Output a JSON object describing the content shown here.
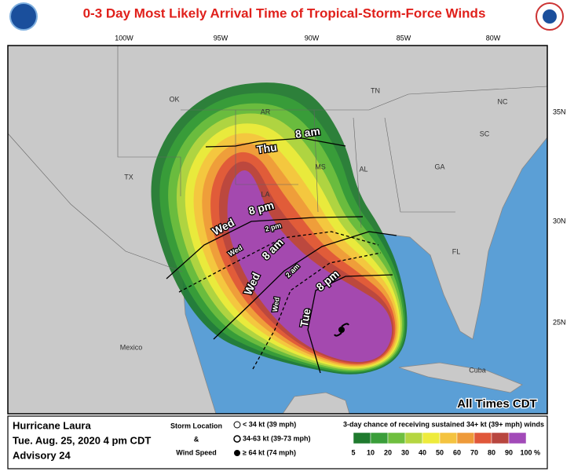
{
  "header": {
    "title": "0-3 Day Most Likely Arrival Time of Tropical-Storm-Force Winds"
  },
  "map": {
    "longitude_labels": [
      "100W",
      "95W",
      "90W",
      "85W",
      "80W"
    ],
    "latitude_labels": [
      "35N",
      "30N",
      "25N"
    ],
    "region_labels": [
      "OK",
      "AR",
      "TN",
      "NC",
      "SC",
      "GA",
      "AL",
      "MS",
      "LA",
      "TX",
      "FL",
      "Mexico",
      "Cuba"
    ],
    "arrival_times": [
      {
        "day": "Thu",
        "time": "8 am"
      },
      {
        "day": "Wed",
        "time": "8 pm"
      },
      {
        "day": "Wed",
        "time": "2 pm"
      },
      {
        "day": "Wed",
        "time": "8 am"
      },
      {
        "day": "Wed",
        "time": "2 am"
      },
      {
        "day": "Tue",
        "time": "8 pm"
      }
    ],
    "note": "All Times CDT"
  },
  "footer": {
    "storm": "Hurricane Laura",
    "issued": "Tue. Aug. 25, 2020  4 pm CDT",
    "advisory": "Advisory 24",
    "legend_title": [
      "Storm Location",
      "&",
      "Wind Speed"
    ],
    "legend_items": [
      "< 34 kt (39 mph)",
      "34-63 kt (39-73 mph)",
      "≥ 64 kt (74 mph)"
    ],
    "scale_title": "3-day chance of receiving sustained 34+ kt (39+ mph) winds",
    "scale": {
      "labels": [
        5,
        10,
        20,
        30,
        40,
        50,
        60,
        70,
        80,
        90,
        100
      ],
      "unit": "%",
      "colors": [
        "#1f7a2e",
        "#3a9e3a",
        "#6fbf3f",
        "#b5d641",
        "#eeeb3c",
        "#f4c340",
        "#ee9a3a",
        "#e0573a",
        "#b8463f",
        "#a24ab8"
      ]
    }
  }
}
